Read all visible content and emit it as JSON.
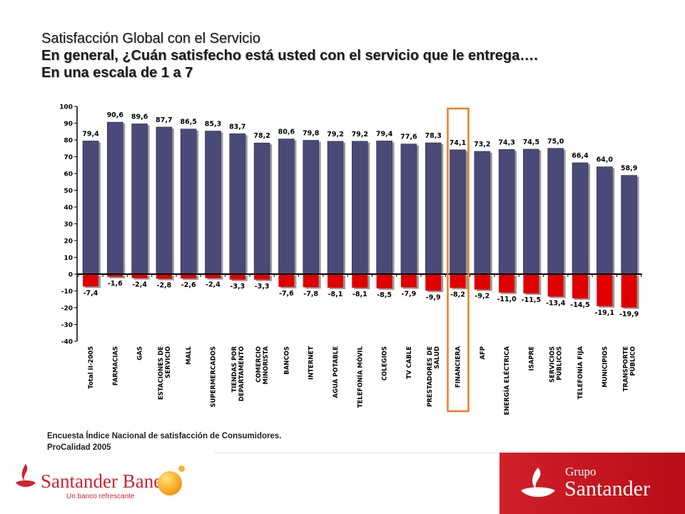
{
  "title_line1": "Satisfacción Global con el Servicio",
  "title_line2": "En general, ¿Cuán satisfecho está usted con el servicio que le entrega….",
  "title_line3": "En una escala de 1 a 7",
  "source_line1": "Encuesta Índice Nacional de satisfacción de Consumidores.",
  "source_line2": "ProCalidad 2005",
  "footer": {
    "left_brand": "Santander Banefe",
    "left_tagline": "Un banco refrescante",
    "right_brand_small": "Grupo",
    "right_brand_big": "Santander"
  },
  "colors": {
    "positive_bar": "#4a4a78",
    "negative_bar": "#e00000",
    "highlight_box": "#ee7d22",
    "footer_red": "#c8141e"
  },
  "chart_data": {
    "type": "bar",
    "title": "",
    "xlabel": "",
    "ylabel": "",
    "ylim": [
      -40,
      100
    ],
    "yticks": [
      100,
      90,
      80,
      70,
      60,
      50,
      40,
      30,
      20,
      10,
      0,
      -10,
      -20,
      -30,
      -40
    ],
    "grid": false,
    "legend": "none",
    "categories": [
      [
        "Total II-2005"
      ],
      [
        "FARMACIAS"
      ],
      [
        "GAS"
      ],
      [
        "ESTACIONES DE",
        "SERVICIO"
      ],
      [
        "MALL"
      ],
      [
        "SUPERMERCADOS"
      ],
      [
        "TIENDAS POR",
        "DEPARTAMENTO"
      ],
      [
        "COMERCIO",
        "MINORISTA"
      ],
      [
        "BANCOS"
      ],
      [
        "INTERNET"
      ],
      [
        "AGUA POTABLE"
      ],
      [
        "TELEFONÍA MÓVIL"
      ],
      [
        "COLEGIOS"
      ],
      [
        "TV CABLE"
      ],
      [
        "PRESTADORES DE",
        "SALUD"
      ],
      [
        "FINANCIERA"
      ],
      [
        "AFP"
      ],
      [
        "ENERGÍA ELÉCTRICA"
      ],
      [
        "ISAPRE"
      ],
      [
        "SERVICIOS",
        "PÚBLICOS"
      ],
      [
        "TELEFONÍA FIJA"
      ],
      [
        "MUNICIPIOS"
      ],
      [
        "TRANSPORTE",
        "PÚBLICO"
      ]
    ],
    "series": [
      {
        "values": [
          79.4,
          90.6,
          89.6,
          87.7,
          86.5,
          85.3,
          83.7,
          78.2,
          80.6,
          79.8,
          79.2,
          79.2,
          79.4,
          77.6,
          78.3,
          74.1,
          73.2,
          74.3,
          74.5,
          75.0,
          66.4,
          64.0,
          58.9
        ],
        "labels": [
          "79,4",
          "90,6",
          "89,6",
          "87,7",
          "86,5",
          "85,3",
          "83,7",
          "78,2",
          "80,6",
          "79,8",
          "79,2",
          "79,2",
          "79,4",
          "77,6",
          "78,3",
          "74,1",
          "73,2",
          "74,3",
          "74,5",
          "75,0",
          "66,4",
          "64,0",
          "58,9"
        ]
      },
      {
        "values": [
          -7.4,
          -1.6,
          -2.4,
          -2.8,
          -2.6,
          -2.4,
          -3.3,
          -3.3,
          -7.6,
          -7.8,
          -8.1,
          -8.1,
          -8.5,
          -7.9,
          -9.9,
          -8.2,
          -9.2,
          -11.0,
          -11.5,
          -13.4,
          -14.5,
          -19.1,
          -19.9
        ],
        "labels": [
          "-7,4",
          "-1,6",
          "-2,4",
          "-2,8",
          "-2,6",
          "-2,4",
          "-3,3",
          "-3,3",
          "-7,6",
          "-7,8",
          "-8,1",
          "-8,1",
          "-8,5",
          "-7,9",
          "-9,9",
          "-8,2",
          "-9,2",
          "-11,0",
          "-11,5",
          "-13,4",
          "-14,5",
          "-19,1",
          "-19,9"
        ]
      }
    ],
    "highlighted_category": "FINANCIERA"
  }
}
